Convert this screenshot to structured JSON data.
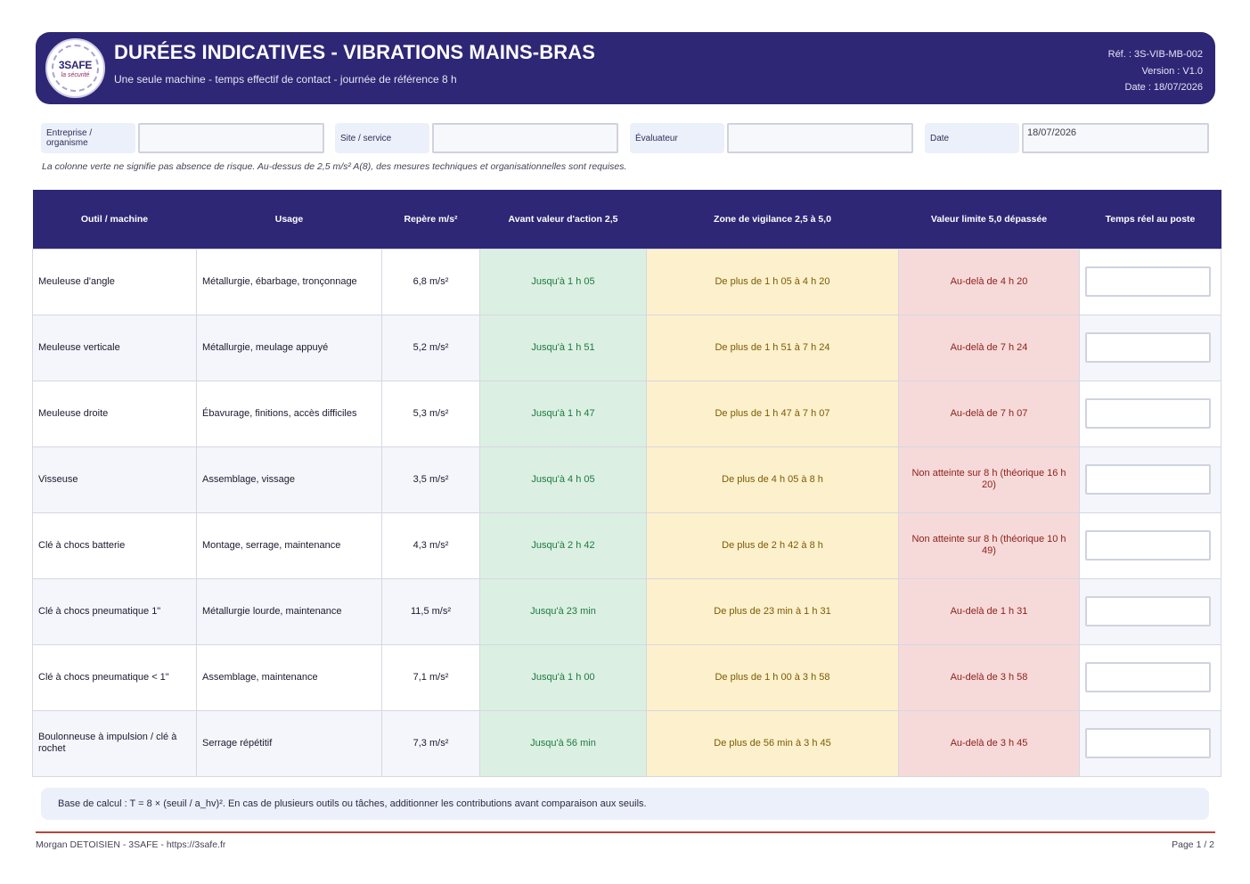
{
  "header": {
    "logo_text": "3SAFE",
    "logo_sub": "la sécurité",
    "title": "DURÉES INDICATIVES - VIBRATIONS MAINS-BRAS",
    "subtitle": "Une seule machine - temps effectif de contact - journée de référence 8 h",
    "ref": "Réf. : 3S-VIB-MB-002",
    "version": "Version : V1.0",
    "date": "Date : 18/07/2026"
  },
  "form": {
    "company_label": "Entreprise / organisme",
    "company_value": "",
    "site_label": "Site / service",
    "site_value": "",
    "evaluator_label": "Évaluateur",
    "evaluator_value": "",
    "date_label": "Date",
    "date_value": "18/07/2026"
  },
  "note": "La colonne verte ne signifie pas absence de risque. Au-dessus de 2,5 m/s² A(8), des mesures techniques et organisationnelles sont requises.",
  "table": {
    "headers": [
      "Outil / machine",
      "Usage",
      "Repère m/s²",
      "Avant valeur d'action 2,5",
      "Zone de vigilance 2,5 à 5,0",
      "Valeur limite 5,0 dépassée",
      "Temps réel au poste"
    ],
    "rows": [
      {
        "tool": "Meuleuse d'angle",
        "usage": "Métallurgie, ébarbage, tronçonnage",
        "ref": "6,8 m/s²",
        "green": "Jusqu'à 1 h 05",
        "yellow": "De plus de 1 h 05 à 4 h 20",
        "red": "Au-delà de 4 h 20",
        "real": ""
      },
      {
        "tool": "Meuleuse verticale",
        "usage": "Métallurgie, meulage appuyé",
        "ref": "5,2 m/s²",
        "green": "Jusqu'à 1 h 51",
        "yellow": "De plus de 1 h 51 à 7 h 24",
        "red": "Au-delà de 7 h 24",
        "real": ""
      },
      {
        "tool": "Meuleuse droite",
        "usage": "Ébavurage, finitions, accès difficiles",
        "ref": "5,3 m/s²",
        "green": "Jusqu'à 1 h 47",
        "yellow": "De plus de 1 h 47 à 7 h 07",
        "red": "Au-delà de 7 h 07",
        "real": ""
      },
      {
        "tool": "Visseuse",
        "usage": "Assemblage, vissage",
        "ref": "3,5 m/s²",
        "green": "Jusqu'à 4 h 05",
        "yellow": "De plus de 4 h 05 à 8 h",
        "red": "Non atteinte sur 8 h (théorique 16 h 20)",
        "real": ""
      },
      {
        "tool": "Clé à chocs batterie",
        "usage": "Montage, serrage, maintenance",
        "ref": "4,3 m/s²",
        "green": "Jusqu'à 2 h 42",
        "yellow": "De plus de 2 h 42 à 8 h",
        "red": "Non atteinte sur 8 h (théorique 10 h 49)",
        "real": ""
      },
      {
        "tool": "Clé à chocs pneumatique 1\"",
        "usage": "Métallurgie lourde, maintenance",
        "ref": "11,5 m/s²",
        "green": "Jusqu'à 23 min",
        "yellow": "De plus de 23 min à 1 h 31",
        "red": "Au-delà de 1 h 31",
        "real": ""
      },
      {
        "tool": "Clé à chocs pneumatique < 1\"",
        "usage": "Assemblage, maintenance",
        "ref": "7,1 m/s²",
        "green": "Jusqu'à 1 h 00",
        "yellow": "De plus de 1 h 00 à 3 h 58",
        "red": "Au-delà de 3 h 58",
        "real": ""
      },
      {
        "tool": "Boulonneuse à impulsion / clé à rochet",
        "usage": "Serrage répétitif",
        "ref": "7,3 m/s²",
        "green": "Jusqu'à 56 min",
        "yellow": "De plus de 56 min à 3 h 45",
        "red": "Au-delà de 3 h 45",
        "real": ""
      }
    ]
  },
  "basis": "Base de calcul : T = 8 × (seuil / a_hv)². En cas de plusieurs outils ou tâches, additionner les contributions avant comparaison aux seuils.",
  "footer": {
    "left": "Morgan DETOISIEN - 3SAFE - https://3safe.fr",
    "right": "Page 1 / 2"
  },
  "colors": {
    "header_bg": "#2e2776",
    "green_bg": "#dcefe3",
    "yellow_bg": "#fdf0cc",
    "red_bg": "#f6dad9",
    "footer_line": "#b2483e"
  }
}
